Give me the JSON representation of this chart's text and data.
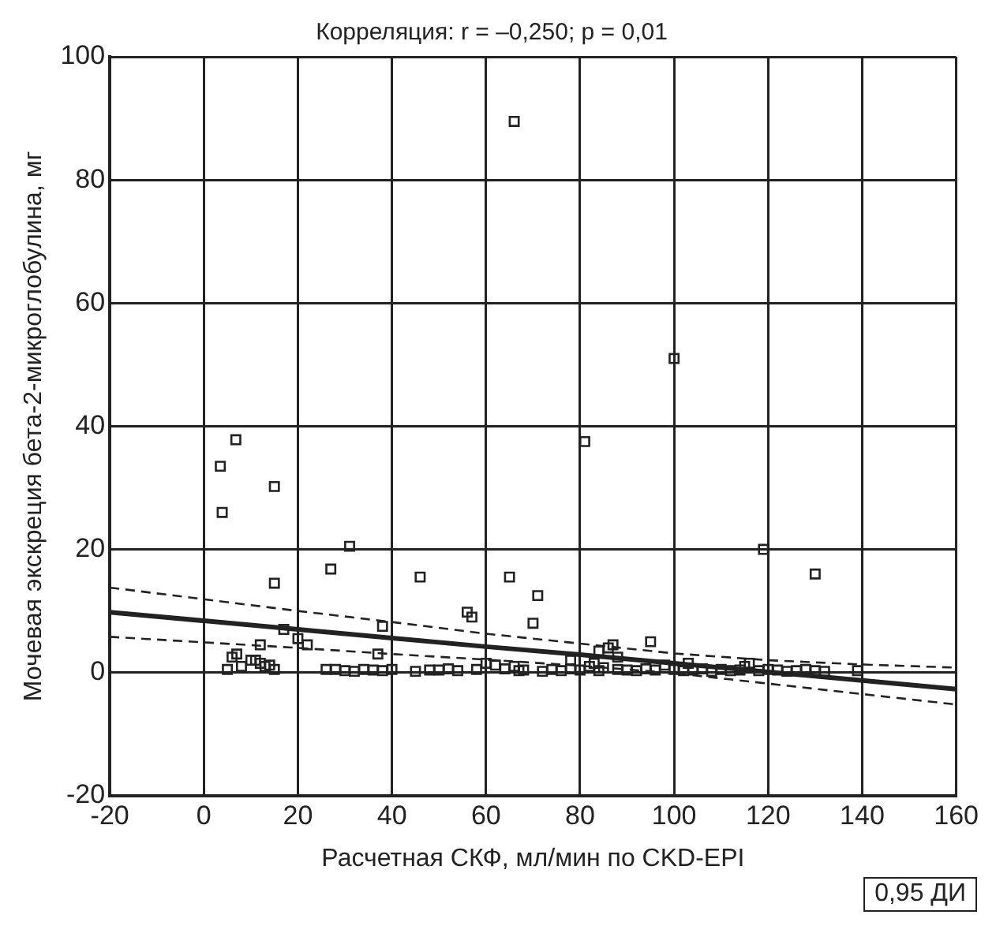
{
  "chart_data": {
    "type": "scatter",
    "title": "Корреляция: r = –0,250; p = 0,01",
    "xlabel": "Расчетная СКФ, мл/мин по CKD-EPI",
    "ylabel": "Мочевая экскреция бета-2-микроглобулина, мг",
    "xlim": [
      -20,
      160
    ],
    "ylim": [
      -20,
      100
    ],
    "xticks": [
      -20,
      0,
      20,
      40,
      60,
      80,
      100,
      120,
      140,
      160
    ],
    "yticks": [
      -20,
      0,
      20,
      40,
      60,
      80,
      100
    ],
    "grid": true,
    "legend": false,
    "annotations": [
      "0,95 ДИ"
    ],
    "series": [
      {
        "color": "#222222",
        "marker": "square",
        "x": [
          66,
          100,
          81,
          119,
          130,
          6.8,
          3.5,
          15,
          3.9,
          15,
          31,
          27,
          46,
          65,
          71,
          56,
          57,
          70,
          38,
          17,
          20,
          22,
          95,
          87,
          86,
          84,
          12,
          13,
          6,
          7,
          10,
          12,
          5,
          8,
          14,
          15,
          28,
          30,
          32,
          34,
          36,
          38,
          40,
          45,
          50,
          52,
          54,
          58,
          60,
          62,
          64,
          67,
          68,
          72,
          74,
          76,
          78,
          80,
          82,
          84,
          85,
          88,
          90,
          92,
          94,
          96,
          98,
          100,
          102,
          104,
          106,
          108,
          110,
          112,
          114,
          116,
          118,
          120,
          122,
          124,
          126,
          128,
          130,
          132,
          139,
          37,
          26,
          48,
          66,
          78,
          83,
          88,
          103,
          115,
          11
        ],
        "values": [
          89.5,
          51,
          37.5,
          20,
          16,
          37.8,
          33.5,
          30.2,
          26,
          14.5,
          20.5,
          16.8,
          15.5,
          15.5,
          12.5,
          9.8,
          9,
          8,
          7.5,
          7,
          5.5,
          4.5,
          5,
          4.5,
          4,
          3.5,
          4.5,
          1,
          2.5,
          3,
          2,
          1.5,
          0.5,
          1,
          1.2,
          0.5,
          0.5,
          0.3,
          0.2,
          0.5,
          0.4,
          0.3,
          0.5,
          0.2,
          0.4,
          0.6,
          0.3,
          0.5,
          1.5,
          1.2,
          0.6,
          0.3,
          0.4,
          0.2,
          0.5,
          0.3,
          0.6,
          0.4,
          1,
          0.3,
          0.8,
          0.5,
          0.4,
          0.3,
          0.6,
          0.4,
          1.2,
          0.5,
          0.3,
          0.4,
          0.6,
          0.2,
          0.5,
          0.3,
          0.4,
          1.5,
          0.3,
          0.5,
          0.4,
          0.2,
          0.3,
          0.5,
          0.3,
          0.2,
          0.3,
          3,
          0.5,
          0.4,
          1,
          2,
          1.5,
          2.5,
          1.5,
          1,
          2
        ]
      },
      {
        "type": "line",
        "color": "#222222",
        "marker": "none",
        "line_style": "solid",
        "x": [
          -20,
          0,
          20,
          40,
          60,
          80,
          100,
          120,
          140,
          160
        ],
        "values": [
          9.8,
          8.4,
          7.0,
          5.6,
          4.2,
          2.9,
          1.5,
          0.1,
          -1.3,
          -2.7
        ]
      },
      {
        "type": "line",
        "color": "#222222",
        "marker": "none",
        "line_style": "dashed",
        "x": [
          -20,
          0,
          20,
          40,
          60,
          80,
          100,
          120,
          140,
          160
        ],
        "values": [
          13.8,
          11.9,
          10.0,
          8.2,
          6.3,
          4.7,
          3.1,
          2.0,
          1.3,
          0.8
        ]
      },
      {
        "type": "line",
        "color": "#222222",
        "marker": "none",
        "line_style": "dashed",
        "x": [
          -20,
          0,
          20,
          40,
          60,
          80,
          100,
          120,
          140,
          160
        ],
        "values": [
          5.8,
          4.9,
          4.0,
          3.0,
          2.1,
          1.1,
          -0.1,
          -1.8,
          -3.5,
          -5.2
        ]
      }
    ]
  }
}
